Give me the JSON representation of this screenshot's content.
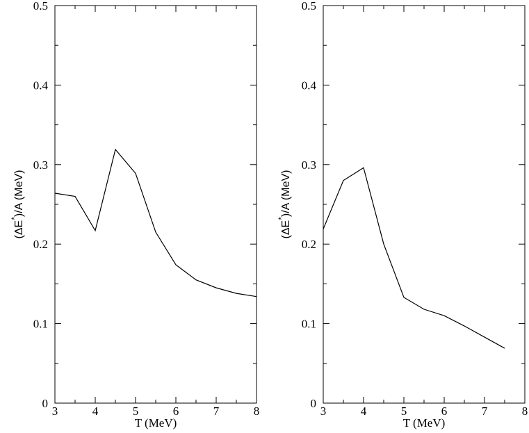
{
  "chart_data": [
    {
      "type": "line",
      "xlabel": "T (MeV)",
      "ylabel": "(ΔE*)/A (MeV)",
      "ylabel_parts": {
        "open": "(ΔE",
        "sup": "*",
        "close": ")/A (MeV)"
      },
      "xlim": [
        3,
        8
      ],
      "ylim": [
        0,
        0.5
      ],
      "xticks": [
        3,
        4,
        5,
        6,
        7,
        8
      ],
      "yticks": [
        0,
        0.1,
        0.2,
        0.3,
        0.4,
        0.5
      ],
      "xtick_labels": [
        "3",
        "4",
        "5",
        "6",
        "7",
        "8"
      ],
      "ytick_labels": [
        "0",
        "0.1",
        "0.2",
        "0.3",
        "0.4",
        "0.5"
      ],
      "grid": false,
      "series": [
        {
          "x": [
            3,
            3.5,
            4,
            4.5,
            5,
            5.5,
            6,
            6.5,
            7,
            7.5,
            8
          ],
          "y": [
            0.264,
            0.26,
            0.217,
            0.319,
            0.289,
            0.215,
            0.174,
            0.155,
            0.145,
            0.138,
            0.134
          ]
        }
      ]
    },
    {
      "type": "line",
      "xlabel": "T (MeV)",
      "ylabel": "(ΔE*)/A (MeV)",
      "ylabel_parts": {
        "open": "(ΔE",
        "sup": "*",
        "close": ")/A (MeV)"
      },
      "xlim": [
        3,
        8
      ],
      "ylim": [
        0,
        0.5
      ],
      "xticks": [
        3,
        4,
        5,
        6,
        7,
        8
      ],
      "yticks": [
        0,
        0.1,
        0.2,
        0.3,
        0.4,
        0.5
      ],
      "xtick_labels": [
        "3",
        "4",
        "5",
        "6",
        "7",
        "8"
      ],
      "ytick_labels": [
        "0",
        "0.1",
        "0.2",
        "0.3",
        "0.4",
        "0.5"
      ],
      "grid": false,
      "series": [
        {
          "x": [
            3,
            3.5,
            4,
            4.5,
            5,
            5.5,
            6,
            6.5,
            7,
            7.5
          ],
          "y": [
            0.219,
            0.28,
            0.296,
            0.2,
            0.133,
            0.118,
            0.11,
            0.097,
            0.083,
            0.069
          ]
        }
      ]
    }
  ]
}
